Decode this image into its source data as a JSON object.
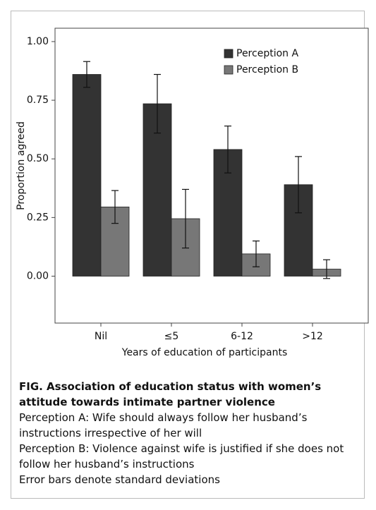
{
  "chart_data": {
    "type": "bar",
    "y_label": "Proportion agreed",
    "x_label": "Years of education of participants",
    "categories": [
      "Nil",
      "≤5",
      "6-12",
      ">12"
    ],
    "series": [
      {
        "name": "Perception A",
        "color": "#333333",
        "values": [
          0.86,
          0.735,
          0.54,
          0.39
        ],
        "errors": [
          0.055,
          0.125,
          0.1,
          0.12
        ]
      },
      {
        "name": "Perception B",
        "color": "#777777",
        "values": [
          0.295,
          0.245,
          0.095,
          0.03
        ],
        "errors": [
          0.07,
          0.125,
          0.055,
          0.04
        ]
      }
    ],
    "ylim": [
      -0.2,
      1.057
    ],
    "yticks": [
      {
        "value": 0,
        "label": "0.00"
      },
      {
        "value": 0.25,
        "label": "0.25"
      },
      {
        "value": 0.5,
        "label": "0.50"
      },
      {
        "value": 0.75,
        "label": "0.75"
      },
      {
        "value": 1,
        "label": "1.00"
      }
    ],
    "legend": "top-right"
  },
  "caption": {
    "title": "FIG. Association of education status with women’s attitude towards intimate partner violence",
    "notes": [
      "Perception A: Wife should always follow her husband’s instructions irrespective of her will",
      "Perception B: Violence against wife is justified if she does not follow her husband’s instructions",
      "Error bars denote standard deviations"
    ]
  }
}
